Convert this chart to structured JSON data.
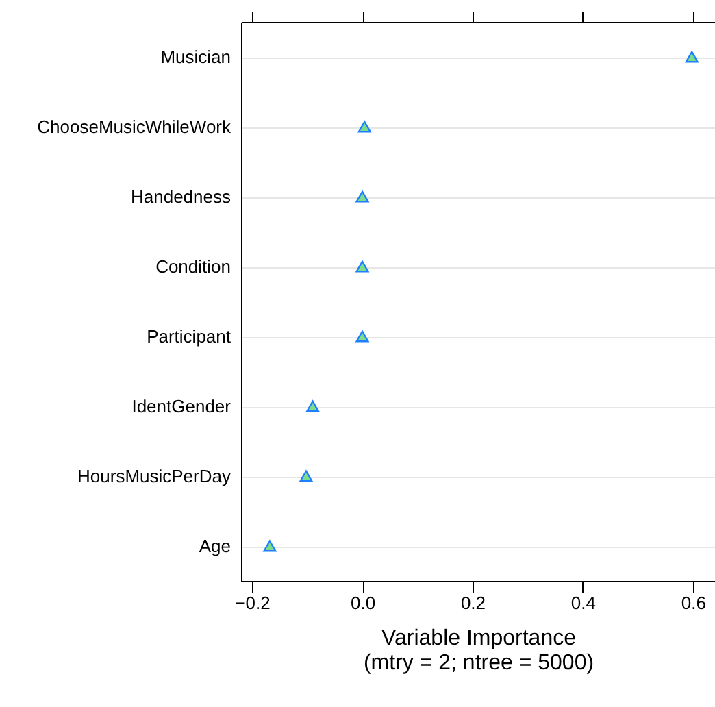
{
  "chart_data": {
    "type": "scatter",
    "orientation": "horizontal",
    "categories": [
      "Musician",
      "ChooseMusicWhileWork",
      "Handedness",
      "Condition",
      "Participant",
      "IdentGender",
      "HoursMusicPerDay",
      "Age"
    ],
    "values": [
      0.598,
      0.004,
      0.0,
      0.0,
      0.0,
      -0.09,
      -0.102,
      -0.168
    ],
    "color": "#7ddc8c",
    "xlabel": "Variable Importance\n(mtry = 2; ntree = 5000)",
    "xlim": [
      -0.22,
      0.64
    ],
    "xticks": [
      -0.2,
      {
        "value": 0,
        "label": "0.0"
      },
      0.2,
      0.4,
      0.6
    ],
    "grid": "y",
    "marker": "triangle"
  }
}
